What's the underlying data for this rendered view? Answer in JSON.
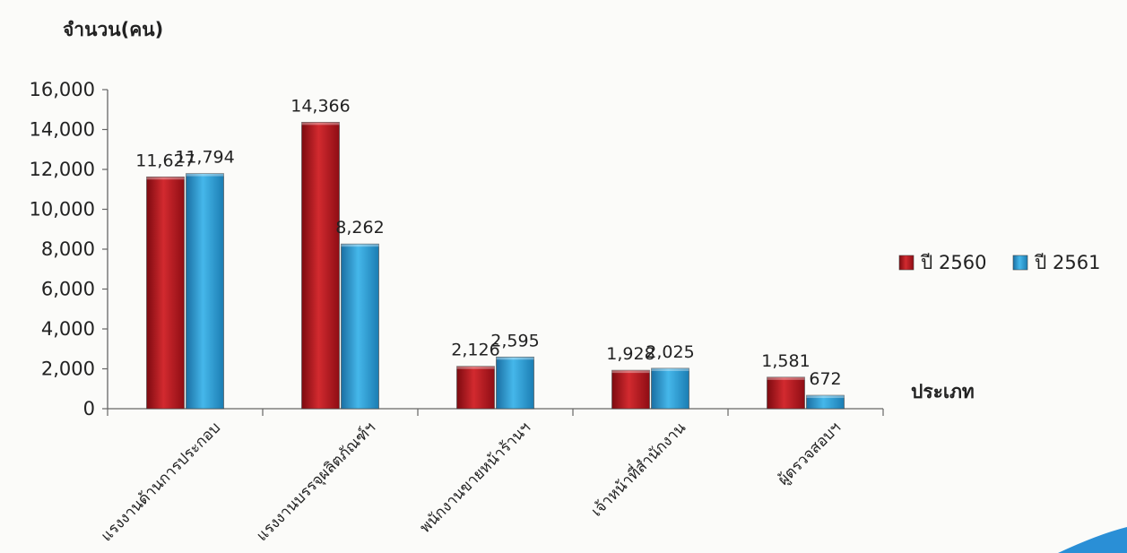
{
  "chart_data": {
    "type": "bar",
    "title": "",
    "ylabel": "จำนวน(คน)",
    "xlabel": "ประเภท",
    "categories": [
      "แรงงานด้านการประกอบ",
      "แรงงานบรรจุผลิตภัณฑ์ฯ",
      "พนักงานขายหน้าร้านฯ",
      "เจ้าหน้าที่สำนักงาน",
      "ผู้ตรวจสอบฯ"
    ],
    "series": [
      {
        "name": "ปี 2560",
        "values": [
          11627,
          14366,
          2126,
          1928,
          1581
        ],
        "labels": [
          "11,627",
          "14,366",
          "2,126",
          "1,928",
          "1,581"
        ],
        "color": "#b5121b"
      },
      {
        "name": "ปี 2561",
        "values": [
          11794,
          8262,
          2595,
          2025,
          672
        ],
        "labels": [
          "11,794",
          "8,262",
          "2,595",
          "2,025",
          "672"
        ],
        "color": "#2a9fd6"
      }
    ],
    "ylim": [
      0,
      16000
    ],
    "yticks": [
      0,
      2000,
      4000,
      6000,
      8000,
      10000,
      12000,
      14000,
      16000
    ],
    "ytick_labels": [
      "0",
      "2,000",
      "4,000",
      "6,000",
      "8,000",
      "10,000",
      "12,000",
      "14,000",
      "16,000"
    ],
    "grid": false,
    "legend_position": "right"
  }
}
